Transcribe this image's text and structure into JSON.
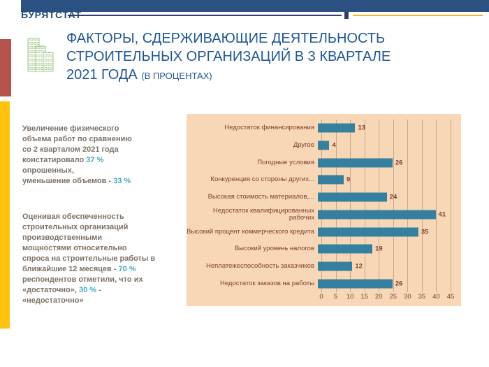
{
  "header": {
    "brand": "БУРЯТСТАТ"
  },
  "title": {
    "line1": "ФАКТОРЫ, СДЕРЖИВАЮЩИЕ ДЕЯТЕЛЬНОСТЬ",
    "line2": "СТРОИТЕЛЬНЫХ ОРГАНИЗАЦИЙ В 3 КВАРТАЛЕ",
    "line3": "2021 ГОДА",
    "subtitle": "(В ПРОЦЕНТАХ)"
  },
  "notes": [
    {
      "segments": [
        {
          "text": "Увеличение физического\nобъема работ по сравнению\nсо 2 кварталом  2021 года\nконстатировало ",
          "highlight": false
        },
        {
          "text": "37 %",
          "highlight": true
        },
        {
          "text": "\nопрошенных,\nуменьшение объемов - ",
          "highlight": false
        },
        {
          "text": "33 %",
          "highlight": true
        }
      ]
    },
    {
      "segments": [
        {
          "text": "Оценивая обеспеченность\nстроительных организаций\nпроизводственными\nмощностями относительно\nспроса на строительные работы в\nближайшие 12 месяцев -  ",
          "highlight": false
        },
        {
          "text": "70 %",
          "highlight": true
        },
        {
          "text": "\nреспондентов отметили, что их\n«достаточно», ",
          "highlight": false
        },
        {
          "text": "30 %",
          "highlight": true
        },
        {
          "text": " -\n«недостаточно»",
          "highlight": false
        }
      ]
    }
  ],
  "chart_data": {
    "type": "bar",
    "orientation": "horizontal",
    "title": "",
    "categories": [
      "Недостаток финансирования",
      "Другое",
      "Погодные условия",
      "Конкуренция  со стороны других...",
      "Высокая стоимость материалов,...",
      "Недостаток квалифицированных рабочих",
      "Высокий процент  коммерческого кредита",
      "Высокий уровень  налогов",
      "Неплатежеспособность  заказчиков",
      "Недостаток заказов на работы"
    ],
    "values": [
      13,
      4,
      26,
      9,
      24,
      41,
      35,
      19,
      12,
      26
    ],
    "xlim": [
      0,
      45
    ],
    "xticks": [
      0,
      5,
      10,
      15,
      20,
      25,
      30,
      35,
      40,
      45
    ],
    "grid": true,
    "legend": false,
    "panel_bg": "#F8D7B6",
    "bar_color": "#35809E",
    "text_color": "#7E4033",
    "gridline_color": "#C4A88E"
  },
  "colors": {
    "header_bar": "#2B5183",
    "brand_text": "#1F4E79",
    "rule_navy": "#2F3E6E",
    "rule_gold": "#F2B52C",
    "accent_red": "#B5534F",
    "accent_yellow": "#FFC20E",
    "title_blue": "#1F5795",
    "note_text": "#7D7166",
    "note_highlight": "#41A8C0",
    "icon_green": "#A6CA8E"
  }
}
